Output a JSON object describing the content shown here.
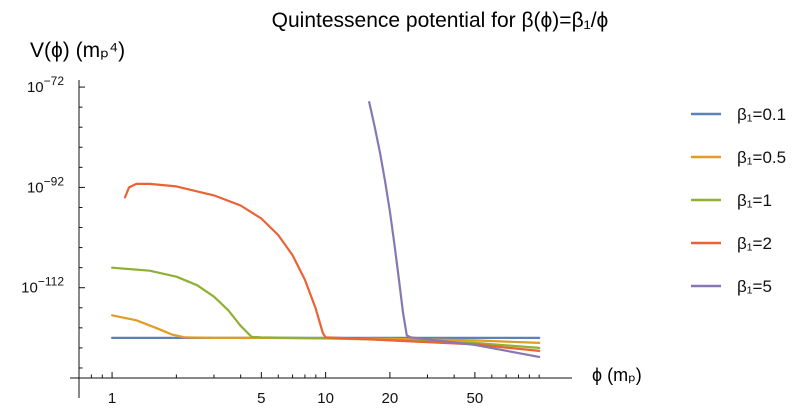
{
  "chart_data": {
    "type": "line",
    "title": "Quintessence potential for β(ϕ)=β₁/ϕ",
    "xlabel": "ϕ (mₚ)",
    "ylabel": "V(ϕ) (mₚ⁴)",
    "x_scale": "log",
    "y_scale": "log",
    "xlim": [
      0.7,
      110
    ],
    "ylim_exponent": [
      -130,
      -67
    ],
    "x_ticks": [
      {
        "value": 1,
        "label": "1"
      },
      {
        "value": 5,
        "label": "5"
      },
      {
        "value": 10,
        "label": "10"
      },
      {
        "value": 20,
        "label": "20"
      },
      {
        "value": 50,
        "label": "50"
      }
    ],
    "y_ticks": [
      {
        "exp": -72,
        "base": "10",
        "sup": "−72"
      },
      {
        "exp": -92,
        "base": "10",
        "sup": "−92"
      },
      {
        "exp": -112,
        "base": "10",
        "sup": "−112"
      }
    ],
    "legend_position": "right",
    "series": [
      {
        "name": "β₁=0.1",
        "color": "#5e81b5",
        "x": [
          1,
          2,
          5,
          10,
          20,
          50,
          100
        ],
        "y_exp": [
          -122.0,
          -122.0,
          -122.0,
          -122.0,
          -122.0,
          -122.0,
          -122.0
        ]
      },
      {
        "name": "β₁=0.5",
        "color": "#e19c24",
        "x": [
          1,
          1.3,
          1.6,
          1.9,
          2.2,
          3,
          5,
          10,
          20,
          50,
          100
        ],
        "y_exp": [
          -117.5,
          -118.5,
          -120.0,
          -121.3,
          -121.9,
          -122.0,
          -122.0,
          -122.1,
          -122.2,
          -122.5,
          -123.0
        ]
      },
      {
        "name": "β₁=1",
        "color": "#8fb032",
        "x": [
          1,
          1.5,
          2,
          2.5,
          3,
          3.5,
          4,
          4.5,
          5,
          7,
          10,
          20,
          50,
          100
        ],
        "y_exp": [
          -108.0,
          -108.6,
          -109.8,
          -111.5,
          -113.8,
          -116.5,
          -119.6,
          -121.8,
          -121.9,
          -122.0,
          -122.1,
          -122.4,
          -123.0,
          -124.0
        ]
      },
      {
        "name": "β₁=2",
        "color": "#eb6235",
        "x": [
          1.15,
          1.2,
          1.3,
          1.5,
          2,
          3,
          4,
          5,
          6,
          7,
          8,
          9,
          9.7,
          10,
          15,
          20,
          50,
          100
        ],
        "y_exp": [
          -94.0,
          -92.0,
          -91.3,
          -91.3,
          -91.8,
          -93.6,
          -95.6,
          -98.2,
          -101.5,
          -105.5,
          -110.4,
          -116.2,
          -121.0,
          -121.9,
          -122.2,
          -122.5,
          -123.3,
          -124.6
        ]
      },
      {
        "name": "β₁=5",
        "color": "#8778b3",
        "x": [
          16,
          17,
          18,
          19,
          20,
          21,
          22,
          23,
          24,
          25,
          30,
          50,
          100
        ],
        "y_exp": [
          -75.0,
          -80.0,
          -85.2,
          -90.8,
          -96.8,
          -103.3,
          -110.0,
          -116.8,
          -121.5,
          -121.9,
          -122.3,
          -123.4,
          -125.8
        ]
      }
    ]
  }
}
